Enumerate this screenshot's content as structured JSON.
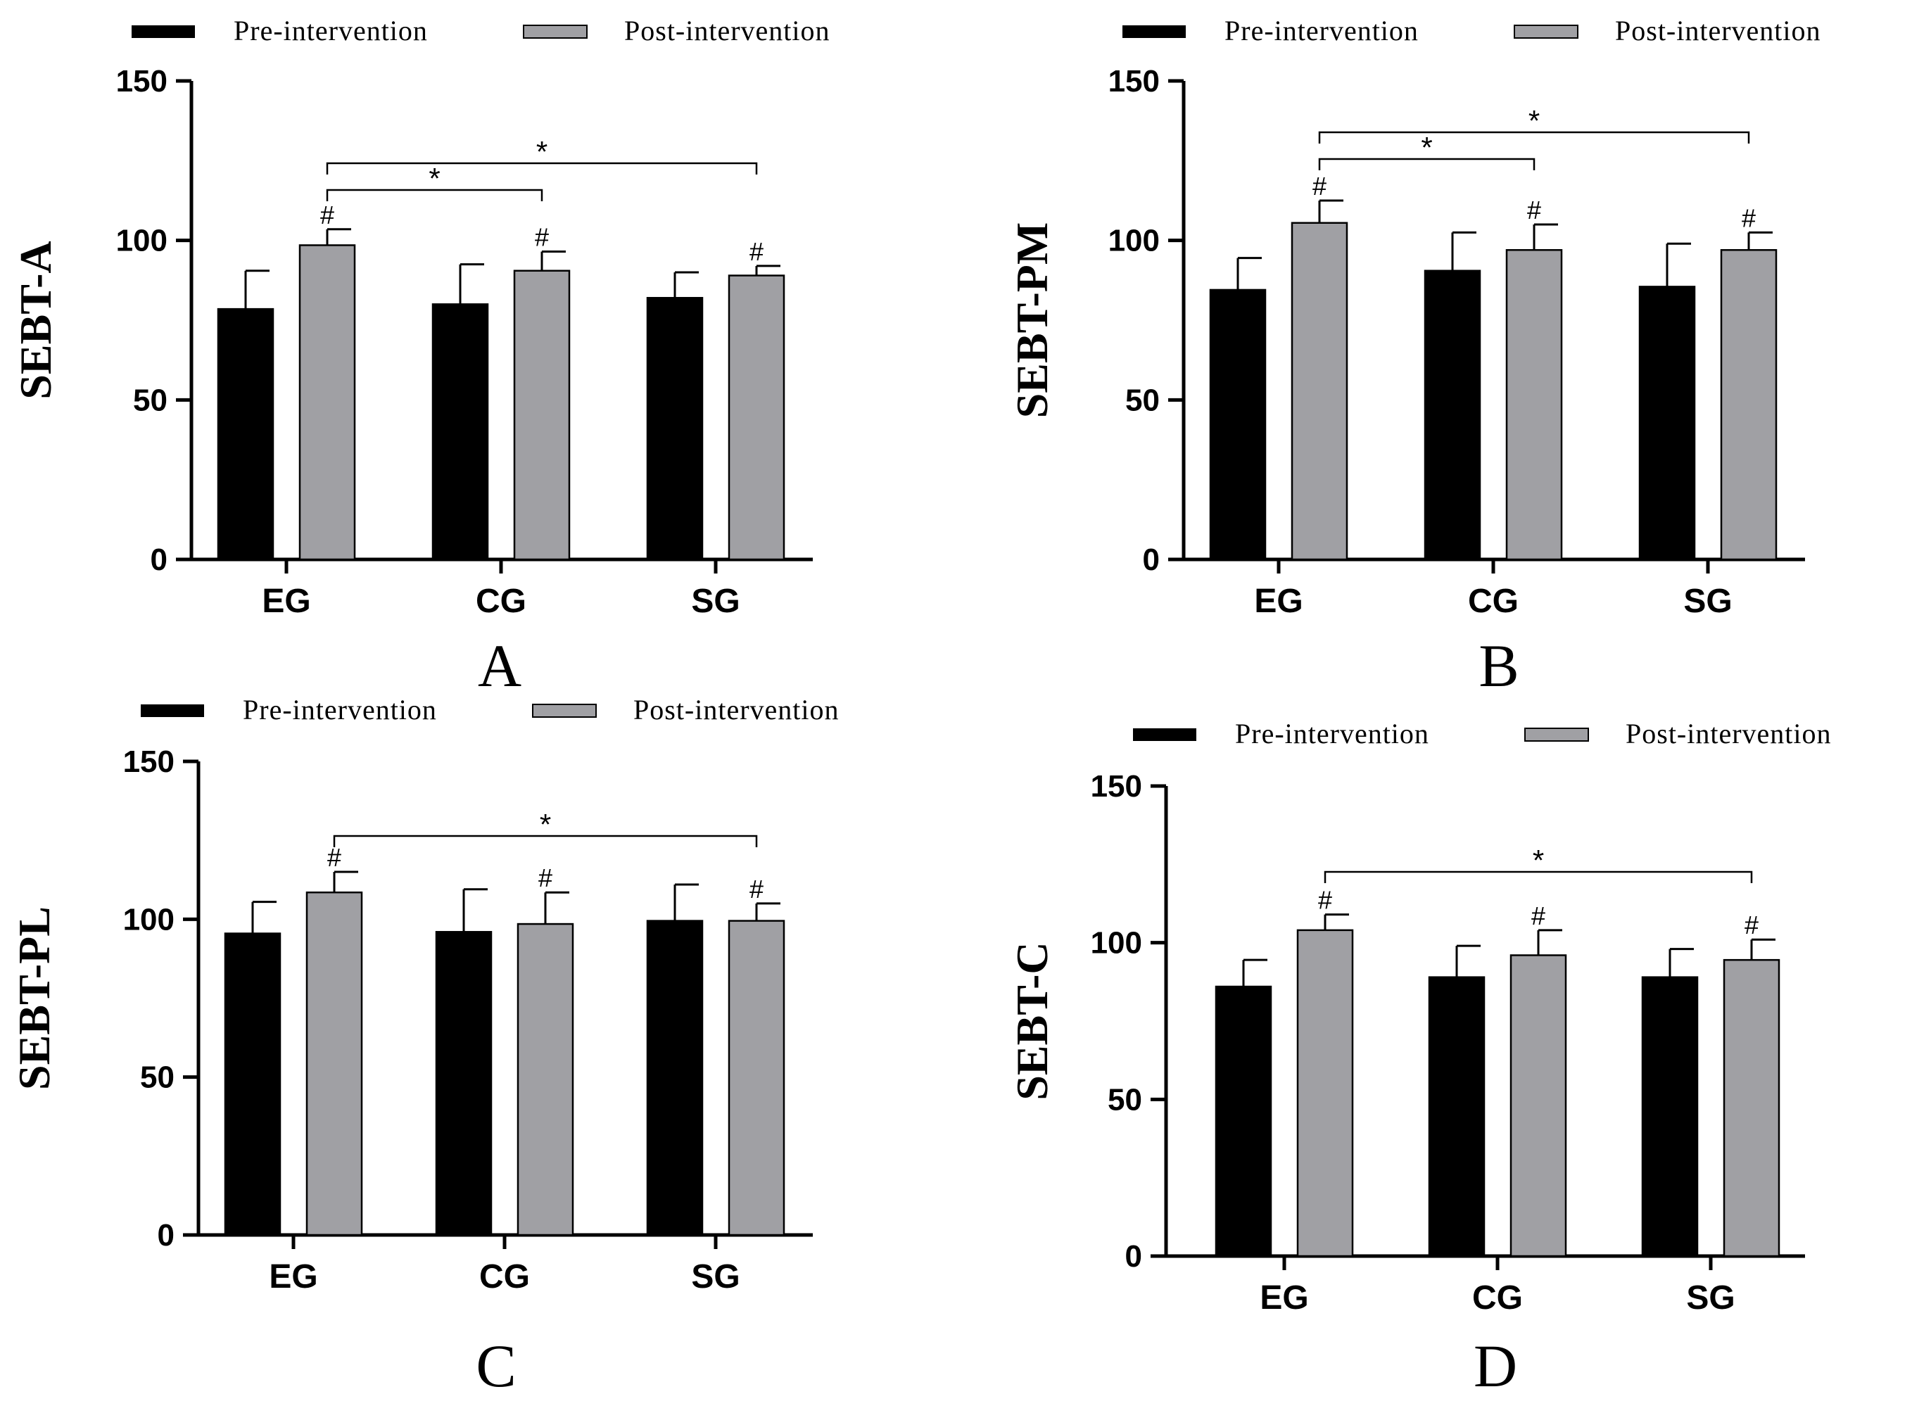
{
  "legend": {
    "pre_label": "Pre-intervention",
    "post_label": "Post-intervention"
  },
  "colors": {
    "pre": "#000000",
    "post": "#a0a0a4",
    "axis": "#000000"
  },
  "chart_data": [
    {
      "type": "bar",
      "panel_label": "A",
      "ylabel": "SEBT-A",
      "ylim": [
        0,
        150
      ],
      "yticks": [
        0,
        50,
        100,
        150
      ],
      "categories": [
        "EG",
        "CG",
        "SG"
      ],
      "series": [
        {
          "name": "Pre-intervention",
          "values": [
            78.5,
            80,
            82
          ],
          "errors": [
            12,
            12.5,
            8
          ]
        },
        {
          "name": "Post-intervention",
          "values": [
            98.5,
            90.5,
            89
          ],
          "errors": [
            5,
            6,
            3
          ]
        }
      ],
      "hash_marks": [
        "#",
        "#",
        "#"
      ],
      "brackets": [
        {
          "from": 0,
          "to": 1,
          "label": "*"
        },
        {
          "from": 0,
          "to": 2,
          "label": "*"
        }
      ]
    },
    {
      "type": "bar",
      "panel_label": "B",
      "ylabel": "SEBT-PM",
      "ylim": [
        0,
        150
      ],
      "yticks": [
        0,
        50,
        100,
        150
      ],
      "categories": [
        "EG",
        "CG",
        "SG"
      ],
      "series": [
        {
          "name": "Pre-intervention",
          "values": [
            84.5,
            90.5,
            85.5
          ],
          "errors": [
            10,
            12,
            13.5
          ]
        },
        {
          "name": "Post-intervention",
          "values": [
            105.5,
            97,
            97
          ],
          "errors": [
            7,
            8,
            5.5
          ]
        }
      ],
      "hash_marks": [
        "#",
        "#",
        "#"
      ],
      "brackets": [
        {
          "from": 0,
          "to": 1,
          "label": "*"
        },
        {
          "from": 0,
          "to": 2,
          "label": "*"
        }
      ]
    },
    {
      "type": "bar",
      "panel_label": "C",
      "ylabel": "SEBT-PL",
      "ylim": [
        0,
        150
      ],
      "yticks": [
        0,
        50,
        100,
        150
      ],
      "categories": [
        "EG",
        "CG",
        "SG"
      ],
      "series": [
        {
          "name": "Pre-intervention",
          "values": [
            95.5,
            96,
            99.5
          ],
          "errors": [
            10,
            13.5,
            11.5
          ]
        },
        {
          "name": "Post-intervention",
          "values": [
            108.5,
            98.5,
            99.5
          ],
          "errors": [
            6.5,
            10,
            5.5
          ]
        }
      ],
      "hash_marks": [
        "#",
        "#",
        "#"
      ],
      "brackets": [
        {
          "from": 0,
          "to": 2,
          "label": "*"
        }
      ]
    },
    {
      "type": "bar",
      "panel_label": "D",
      "ylabel": "SEBT-C",
      "ylim": [
        0,
        150
      ],
      "yticks": [
        0,
        50,
        100,
        150
      ],
      "categories": [
        "EG",
        "CG",
        "SG"
      ],
      "series": [
        {
          "name": "Pre-intervention",
          "values": [
            86,
            89,
            89
          ],
          "errors": [
            8.5,
            10,
            9
          ]
        },
        {
          "name": "Post-intervention",
          "values": [
            104,
            96,
            94.5
          ],
          "errors": [
            5,
            8,
            6.5
          ]
        }
      ],
      "hash_marks": [
        "#",
        "#",
        "#"
      ],
      "brackets": [
        {
          "from": 0,
          "to": 2,
          "label": "*"
        }
      ]
    }
  ]
}
